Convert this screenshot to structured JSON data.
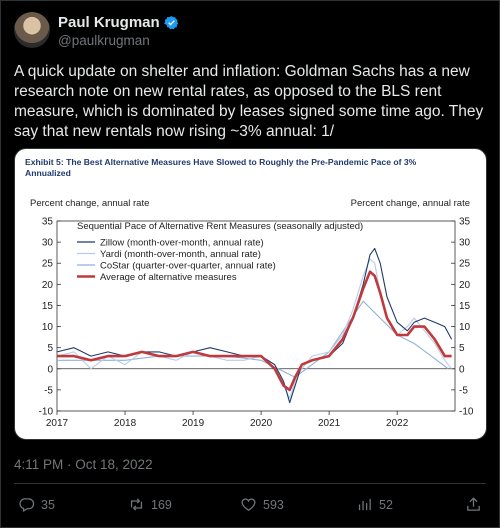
{
  "author": {
    "name": "Paul Krugman",
    "handle": "@paulkrugman"
  },
  "tweet": {
    "text": "A quick update on shelter and inflation: Goldman Sachs has a new research note on new rental rates, as opposed to the BLS rent measure, which is dominated by leases signed some time ago. They say that new rentals now rising ~3% annual: 1/"
  },
  "timestamp": "4:11 PM · Oct 18, 2022",
  "actions": {
    "replies": "35",
    "retweets": "169",
    "likes": "593",
    "bookmarks": "52"
  },
  "colors": {
    "zillow": "#1f3a6b",
    "yardi": "#b7cde6",
    "costar": "#8fb2dc",
    "average": "#c0393c"
  },
  "chart_data": {
    "type": "line",
    "title": "Exhibit 5: The Best Alternative Measures Have Slowed to Roughly the Pre-Pandemic Pace of 3% Annualized",
    "subtitle": "Sequential Pace of Alternative Rent Measures (seasonally adjusted)",
    "ylabel_left": "Percent change, annual rate",
    "ylabel_right": "Percent change, annual rate",
    "ylim": [
      -10,
      35
    ],
    "xlim": [
      2017.0,
      2022.85
    ],
    "y_ticks": [
      "35",
      "30",
      "25",
      "20",
      "15",
      "10",
      "5",
      "0",
      "-5",
      "-10"
    ],
    "x_ticks": [
      "2017",
      "2018",
      "2019",
      "2020",
      "2021",
      "2022"
    ],
    "grid": false,
    "legend_position": "top-left",
    "series": [
      {
        "name": "Zillow (month-over-month, annual rate)",
        "key": "zillow",
        "x": [
          2017.0,
          2017.25,
          2017.5,
          2017.75,
          2018.0,
          2018.25,
          2018.5,
          2018.75,
          2019.0,
          2019.25,
          2019.5,
          2019.75,
          2020.0,
          2020.2,
          2020.33,
          2020.42,
          2020.5,
          2020.6,
          2020.75,
          2021.0,
          2021.2,
          2021.35,
          2021.5,
          2021.6,
          2021.67,
          2021.75,
          2021.85,
          2022.0,
          2022.15,
          2022.25,
          2022.4,
          2022.55,
          2022.7,
          2022.8
        ],
        "y": [
          4,
          5,
          3,
          4,
          3,
          4,
          4,
          3,
          4,
          5,
          4,
          3,
          3,
          1,
          -3,
          -8,
          -4,
          1,
          2,
          3,
          6,
          12,
          20,
          27,
          28.5,
          25,
          17,
          11,
          9,
          11,
          12,
          11,
          10,
          7
        ]
      },
      {
        "name": "Yardi (month-over-month, annual rate)",
        "key": "yardi",
        "x": [
          2017.0,
          2017.25,
          2017.5,
          2017.75,
          2018.0,
          2018.25,
          2018.5,
          2018.75,
          2019.0,
          2019.25,
          2019.5,
          2019.75,
          2020.0,
          2020.2,
          2020.33,
          2020.42,
          2020.5,
          2020.6,
          2020.75,
          2021.0,
          2021.2,
          2021.35,
          2021.5,
          2021.6,
          2021.67,
          2021.75,
          2021.85,
          2022.0,
          2022.15,
          2022.25,
          2022.4,
          2022.55,
          2022.7,
          2022.8
        ],
        "y": [
          3,
          4,
          0,
          3,
          1,
          4,
          3,
          2,
          4,
          3,
          2,
          2,
          3,
          0,
          -4,
          -7,
          -3,
          0,
          3,
          4,
          8,
          14,
          22,
          26,
          25,
          18,
          12,
          8,
          10,
          12,
          9,
          6,
          2,
          0
        ]
      },
      {
        "name": "CoStar (quarter-over-quarter, annual rate)",
        "key": "costar",
        "x": [
          2017.0,
          2017.5,
          2018.0,
          2018.5,
          2019.0,
          2019.5,
          2020.0,
          2020.25,
          2020.5,
          2020.75,
          2021.0,
          2021.25,
          2021.5,
          2021.75,
          2022.0,
          2022.25,
          2022.5,
          2022.75
        ],
        "y": [
          2,
          2,
          2,
          3,
          3,
          3,
          2,
          0,
          -2,
          1,
          4,
          10,
          16,
          12,
          8,
          6,
          3,
          0
        ]
      },
      {
        "name": "Average of alternative measures",
        "key": "average",
        "x": [
          2017.0,
          2017.25,
          2017.5,
          2017.75,
          2018.0,
          2018.25,
          2018.5,
          2018.75,
          2019.0,
          2019.25,
          2019.5,
          2019.75,
          2020.0,
          2020.2,
          2020.33,
          2020.42,
          2020.5,
          2020.6,
          2020.75,
          2021.0,
          2021.2,
          2021.35,
          2021.5,
          2021.6,
          2021.67,
          2021.75,
          2021.85,
          2022.0,
          2022.15,
          2022.25,
          2022.4,
          2022.55,
          2022.7,
          2022.8
        ],
        "y": [
          3,
          3,
          2,
          3,
          3,
          4,
          3,
          3,
          4,
          3,
          3,
          3,
          3,
          0,
          -4,
          -5,
          -2,
          1,
          2,
          3,
          7,
          12,
          19,
          23,
          22,
          18,
          12,
          8,
          8,
          10,
          10,
          7,
          3,
          3
        ]
      }
    ]
  }
}
